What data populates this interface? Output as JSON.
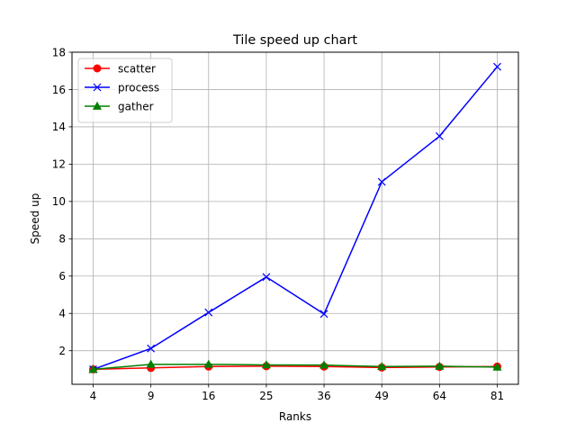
{
  "chart_data": {
    "type": "line",
    "title": "Tile speed up chart",
    "xlabel": "Ranks",
    "ylabel": "Speed up",
    "x": [
      "4",
      "9",
      "16",
      "25",
      "36",
      "49",
      "64",
      "81"
    ],
    "ylim": [
      0.2,
      18
    ],
    "yticks": [
      2,
      4,
      6,
      8,
      10,
      12,
      14,
      16,
      18
    ],
    "grid": true,
    "legend_position": "top-left",
    "series": [
      {
        "name": "scatter",
        "color": "#ff0000",
        "marker": "circle",
        "values": [
          1.0,
          1.08,
          1.15,
          1.17,
          1.15,
          1.1,
          1.13,
          1.15
        ]
      },
      {
        "name": "process",
        "color": "#0000ff",
        "marker": "x",
        "values": [
          1.0,
          2.12,
          4.05,
          5.95,
          3.97,
          11.05,
          13.5,
          17.22
        ]
      },
      {
        "name": "gather",
        "color": "#008000",
        "marker": "triangle",
        "values": [
          1.0,
          1.27,
          1.27,
          1.24,
          1.23,
          1.15,
          1.17,
          1.12
        ]
      }
    ]
  }
}
